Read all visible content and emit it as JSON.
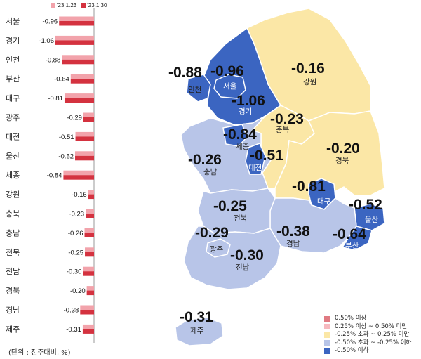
{
  "unit_note": "(단위 : 전주대비, %)",
  "chart_data": {
    "type": "bar",
    "orientation": "horizontal",
    "categories": [
      "서울",
      "경기",
      "인천",
      "부산",
      "대구",
      "광주",
      "대전",
      "울산",
      "세종",
      "강원",
      "충북",
      "충남",
      "전북",
      "전남",
      "경북",
      "경남",
      "제주"
    ],
    "series": [
      {
        "name": "'23.1.23",
        "color": "#f2a3ab",
        "values": [
          -0.96,
          -1.06,
          -0.88,
          -0.64,
          -0.81,
          -0.29,
          -0.51,
          -0.52,
          -0.84,
          -0.16,
          -0.23,
          -0.26,
          -0.25,
          -0.3,
          -0.2,
          -0.38,
          -0.31
        ]
      },
      {
        "name": "'23.1.30",
        "color": "#d4323f",
        "values": [
          -0.96,
          -1.06,
          -0.88,
          -0.64,
          -0.81,
          -0.29,
          -0.51,
          -0.52,
          -0.84,
          -0.16,
          -0.23,
          -0.26,
          -0.25,
          -0.3,
          -0.2,
          -0.38,
          -0.31
        ]
      }
    ],
    "value_labels": [
      "-0.96",
      "-1.06",
      "-0.88",
      "-0.64",
      "-0.81",
      "-0.29",
      "-0.51",
      "-0.52",
      "-0.84",
      "-0.16",
      "-0.23",
      "-0.26",
      "-0.25",
      "-0.30",
      "-0.20",
      "-0.38",
      "-0.31"
    ],
    "xlim": [
      -1.1,
      0
    ],
    "legend_position": "top-right"
  },
  "map": {
    "regions": [
      {
        "id": "seoul",
        "name": "서울",
        "value": "-0.96",
        "color": "#3b65c1"
      },
      {
        "id": "gyeonggi",
        "name": "경기",
        "value": "-1.06",
        "color": "#3b65c1"
      },
      {
        "id": "incheon",
        "name": "인천",
        "value": "-0.88",
        "color": "#3b65c1"
      },
      {
        "id": "gangwon",
        "name": "강원",
        "value": "-0.16",
        "color": "#fbe7a6"
      },
      {
        "id": "chungbuk",
        "name": "충북",
        "value": "-0.23",
        "color": "#fbe7a6"
      },
      {
        "id": "sejong",
        "name": "세종",
        "value": "-0.84",
        "color": "#3b65c1"
      },
      {
        "id": "daejeon",
        "name": "대전",
        "value": "-0.51",
        "color": "#3b65c1"
      },
      {
        "id": "chungnam",
        "name": "충남",
        "value": "-0.26",
        "color": "#b8c5e8"
      },
      {
        "id": "gyeongbuk",
        "name": "경북",
        "value": "-0.20",
        "color": "#fbe7a6"
      },
      {
        "id": "daegu",
        "name": "대구",
        "value": "-0.81",
        "color": "#3b65c1"
      },
      {
        "id": "ulsan",
        "name": "울산",
        "value": "-0.52",
        "color": "#3b65c1"
      },
      {
        "id": "jeonbuk",
        "name": "전북",
        "value": "-0.25",
        "color": "#b8c5e8"
      },
      {
        "id": "gyeongnam",
        "name": "경남",
        "value": "-0.38",
        "color": "#b8c5e8"
      },
      {
        "id": "busan",
        "name": "부산",
        "value": "-0.64",
        "color": "#3b65c1"
      },
      {
        "id": "gwangju",
        "name": "광주",
        "value": "-0.29",
        "color": "#b8c5e8"
      },
      {
        "id": "jeonnam",
        "name": "전남",
        "value": "-0.30",
        "color": "#b8c5e8"
      },
      {
        "id": "jeju",
        "name": "제주",
        "value": "-0.31",
        "color": "#b8c5e8"
      }
    ],
    "legend": [
      {
        "label": "0.50% 이상",
        "color": "#e07a82"
      },
      {
        "label": "0.25% 이상 ~ 0.50% 미만",
        "color": "#f6b9bf"
      },
      {
        "label": "-0.25% 초과 ~ 0.25% 미만",
        "color": "#fbe7a6"
      },
      {
        "label": "-0.50% 초과 ~ -0.25% 이하",
        "color": "#b8c5e8"
      },
      {
        "label": "-0.50% 이하",
        "color": "#3b65c1"
      }
    ]
  }
}
